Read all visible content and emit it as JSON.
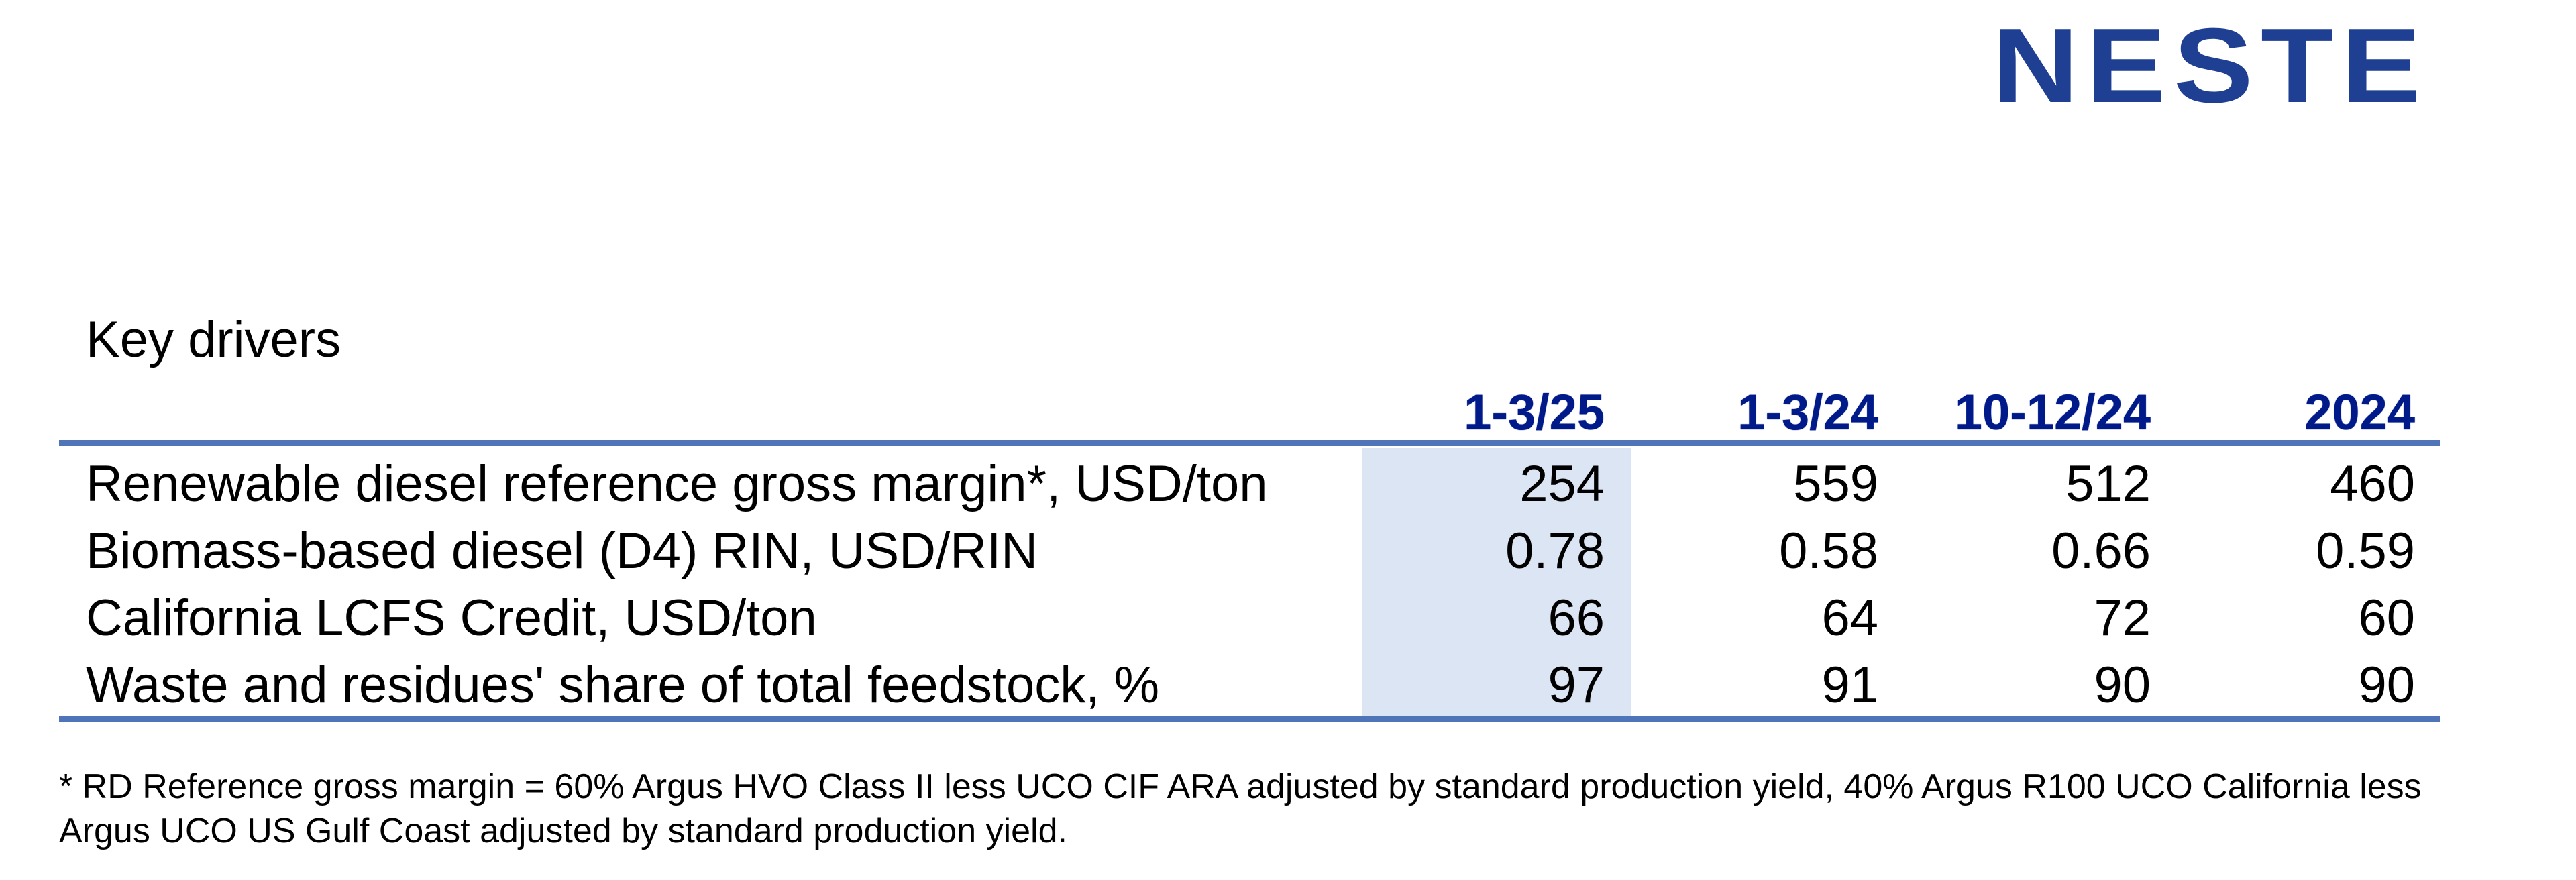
{
  "brand": {
    "logo_text": "NESTE",
    "logo_color": "#1f3f93"
  },
  "section_title": "Key drivers",
  "table": {
    "columns": [
      "1-3/25",
      "1-3/24",
      "10-12/24",
      "2024"
    ],
    "highlight_column_color": "#dbe5f3",
    "header_color": "#001a8a",
    "rule_color": "#4f74b8",
    "rows": [
      {
        "label": "Renewable diesel reference gross margin*, USD/ton",
        "values": [
          "254",
          "559",
          "512",
          "460"
        ]
      },
      {
        "label": "Biomass-based diesel (D4) RIN, USD/RIN",
        "values": [
          "0.78",
          "0.58",
          "0.66",
          "0.59"
        ]
      },
      {
        "label": "California LCFS Credit, USD/ton",
        "values": [
          "66",
          "64",
          "72",
          "60"
        ]
      },
      {
        "label": "Waste and residues' share of total feedstock, %",
        "values": [
          "97",
          "91",
          "90",
          "90"
        ]
      }
    ]
  },
  "footnote": "* RD Reference gross margin = 60% Argus HVO Class II less UCO CIF ARA adjusted by standard production yield, 40% Argus R100 UCO California less Argus UCO US Gulf Coast adjusted by standard production yield."
}
